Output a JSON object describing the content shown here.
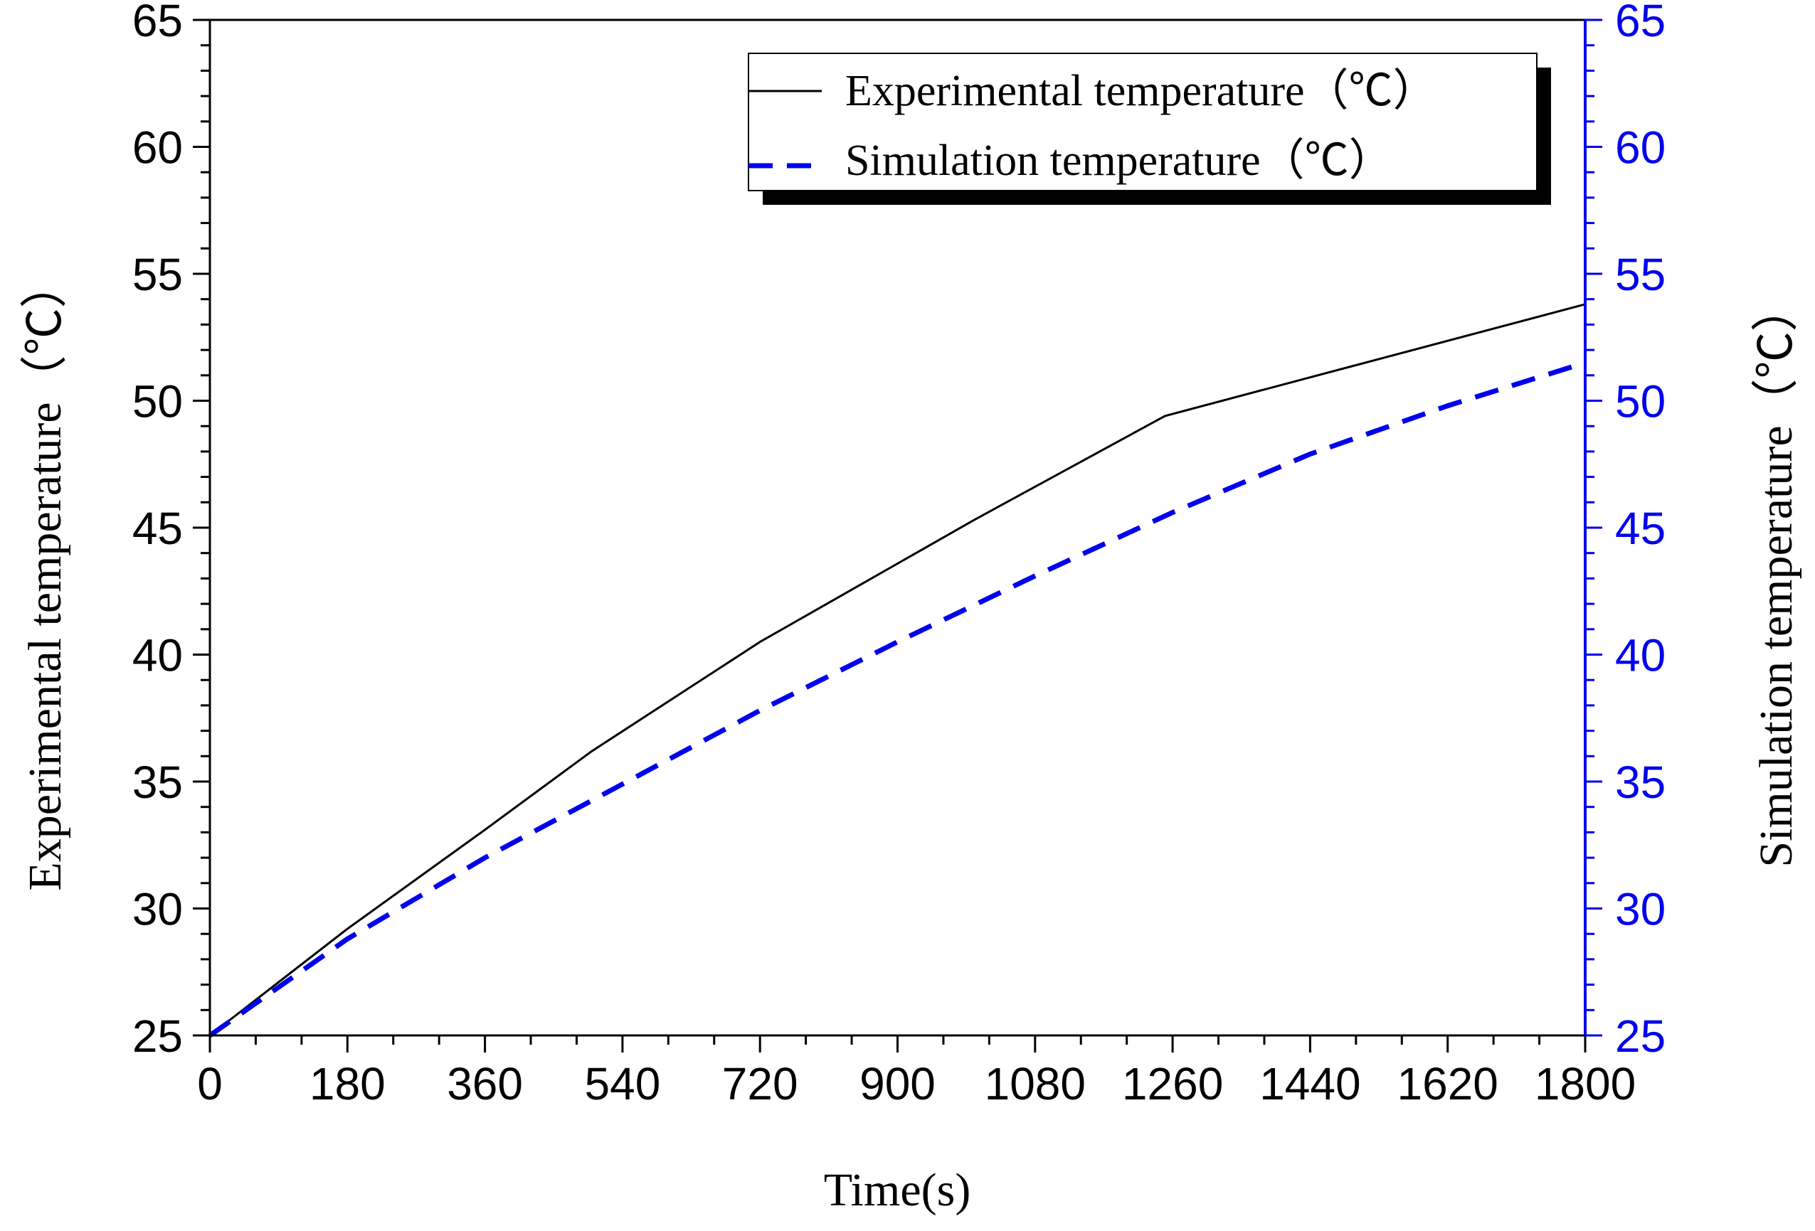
{
  "chart_data": {
    "type": "line",
    "title": "",
    "xlabel": "Time(s)",
    "ylabel": "Experimental temperature（℃）",
    "y2label": "Simulation temperature（℃）",
    "xlim": [
      0,
      1800
    ],
    "ylim": [
      25,
      65
    ],
    "y2lim": [
      25,
      65
    ],
    "xticks": [
      0,
      180,
      360,
      540,
      720,
      900,
      1080,
      1260,
      1440,
      1620,
      1800
    ],
    "xtick_labels": [
      "0",
      "180",
      "360",
      "540",
      "720",
      "900",
      "1080",
      "1260",
      "1440",
      "1620",
      "1800"
    ],
    "yticks": [
      25,
      30,
      35,
      40,
      45,
      50,
      55,
      60,
      65
    ],
    "ytick_labels": [
      "25",
      "30",
      "35",
      "40",
      "45",
      "50",
      "55",
      "60",
      "65"
    ],
    "y2ticks": [
      25,
      30,
      35,
      40,
      45,
      50,
      55,
      60,
      65
    ],
    "y2tick_labels": [
      "25",
      "30",
      "35",
      "40",
      "45",
      "50",
      "55",
      "60",
      "65"
    ],
    "grid": false,
    "legend_position": "top-right",
    "series": [
      {
        "name": "Experimental temperature（℃）",
        "color": "#000000",
        "style": "solid",
        "axis": "left",
        "x": [
          0,
          180,
          360,
          500,
          720,
          1000,
          1250,
          1500,
          1800
        ],
        "y": [
          25,
          29.2,
          33.1,
          36.2,
          40.5,
          45.3,
          49.4,
          51.4,
          53.8
        ]
      },
      {
        "name": "Simulation temperature（℃）",
        "color": "#0000ee",
        "style": "dashed",
        "axis": "right",
        "x": [
          0,
          180,
          360,
          540,
          720,
          900,
          1080,
          1260,
          1440,
          1620,
          1800
        ],
        "y": [
          25,
          28.8,
          32.0,
          34.9,
          37.8,
          40.5,
          43.1,
          45.6,
          47.9,
          49.8,
          51.5
        ]
      }
    ],
    "colors": {
      "left_axis": "#000000",
      "right_axis": "#0000ee"
    }
  }
}
